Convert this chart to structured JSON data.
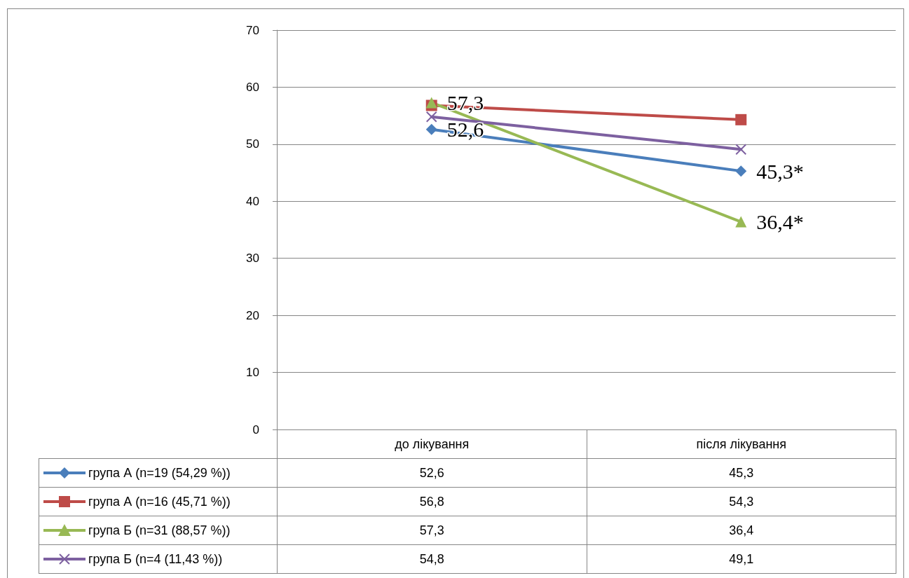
{
  "chart_data": {
    "type": "line",
    "categories": [
      "до лікування",
      "після лікування"
    ],
    "series": [
      {
        "name": "група А (n=19 (54,29 %))",
        "color": "#4a7ebb",
        "marker": "diamond",
        "values": [
          52.6,
          45.3
        ],
        "value_labels": [
          "52,6",
          "45,3"
        ]
      },
      {
        "name": "група А (n=16 (45,71 %))",
        "color": "#be4b48",
        "marker": "square",
        "values": [
          56.8,
          54.3
        ],
        "value_labels": [
          "56,8",
          "54,3"
        ]
      },
      {
        "name": "група Б (n=31 (88,57 %))",
        "color": "#98b954",
        "marker": "triangle",
        "values": [
          57.3,
          36.4
        ],
        "value_labels": [
          "57,3",
          "36,4"
        ]
      },
      {
        "name": "група Б (n=4 (11,43 %))",
        "color": "#7d60a0",
        "marker": "cross",
        "values": [
          54.8,
          49.1
        ],
        "value_labels": [
          "54,8",
          "49,1"
        ]
      }
    ],
    "ylim": [
      0,
      70
    ],
    "yticks": [
      0,
      10,
      20,
      30,
      40,
      50,
      60,
      70
    ],
    "grid": "y",
    "legend": "bottom",
    "annotations": [
      {
        "text": "57,3",
        "x": "до лікування",
        "y": 57.3
      },
      {
        "text": "52,6",
        "x": "до лікування",
        "y": 52.6
      },
      {
        "text": "45,3*",
        "x": "після лікування",
        "y": 45.3
      },
      {
        "text": "36,4*",
        "x": "після лікування",
        "y": 36.4
      }
    ]
  }
}
